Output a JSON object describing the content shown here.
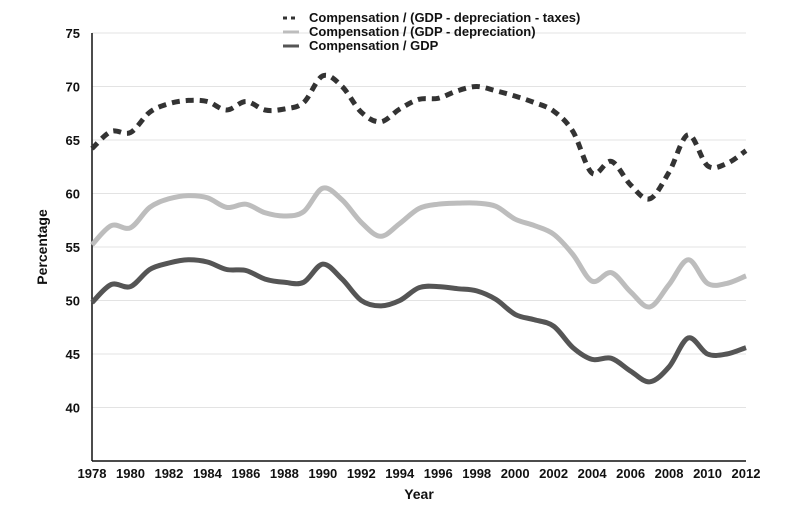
{
  "chart_data": {
    "type": "line",
    "title": "",
    "xlabel": "Year",
    "ylabel": "Percentage",
    "xlim": [
      1978,
      2012
    ],
    "ylim": [
      35,
      75
    ],
    "y_ticks": [
      40,
      45,
      50,
      55,
      60,
      65,
      70,
      75
    ],
    "x_ticks": [
      1978,
      1980,
      1982,
      1984,
      1986,
      1988,
      1990,
      1992,
      1994,
      1996,
      1998,
      2000,
      2002,
      2004,
      2006,
      2008,
      2010,
      2012
    ],
    "grid": "horizontal",
    "legend_position": "top-center",
    "x": [
      1978,
      1979,
      1980,
      1981,
      1982,
      1983,
      1984,
      1985,
      1986,
      1987,
      1988,
      1989,
      1990,
      1991,
      1992,
      1993,
      1994,
      1995,
      1996,
      1997,
      1998,
      1999,
      2000,
      2001,
      2002,
      2003,
      2004,
      2005,
      2006,
      2007,
      2008,
      2009,
      2010,
      2011,
      2012
    ],
    "series": [
      {
        "name": "Compensation / (GDP - depreciation - taxes)",
        "color": "#333333",
        "style": "dashed",
        "values": [
          64.2,
          65.8,
          65.7,
          67.6,
          68.4,
          68.7,
          68.6,
          67.8,
          68.6,
          67.8,
          67.9,
          68.5,
          71.0,
          70.0,
          67.6,
          66.7,
          67.9,
          68.8,
          68.9,
          69.6,
          70.0,
          69.6,
          69.1,
          68.5,
          67.7,
          65.8,
          61.9,
          63.0,
          60.8,
          59.5,
          62.0,
          65.5,
          62.6,
          62.8,
          64.0
        ]
      },
      {
        "name": "Compensation / (GDP - depreciation)",
        "color": "#bdbdbd",
        "style": "solid",
        "values": [
          55.2,
          57.0,
          56.8,
          58.7,
          59.5,
          59.8,
          59.6,
          58.7,
          59.0,
          58.2,
          57.9,
          58.3,
          60.5,
          59.4,
          57.3,
          56.0,
          57.2,
          58.6,
          59.0,
          59.1,
          59.1,
          58.8,
          57.6,
          57.0,
          56.2,
          54.3,
          51.8,
          52.6,
          50.8,
          49.4,
          51.5,
          53.8,
          51.6,
          51.6,
          52.3
        ]
      },
      {
        "name": "Compensation / GDP",
        "color": "#555555",
        "style": "solid",
        "values": [
          49.8,
          51.5,
          51.3,
          52.9,
          53.5,
          53.8,
          53.6,
          52.9,
          52.8,
          52.0,
          51.7,
          51.7,
          53.4,
          52.0,
          50.0,
          49.5,
          50.0,
          51.2,
          51.3,
          51.1,
          50.9,
          50.1,
          48.7,
          48.2,
          47.6,
          45.6,
          44.5,
          44.6,
          43.4,
          42.4,
          43.8,
          46.5,
          45.0,
          45.0,
          45.6
        ]
      }
    ]
  }
}
